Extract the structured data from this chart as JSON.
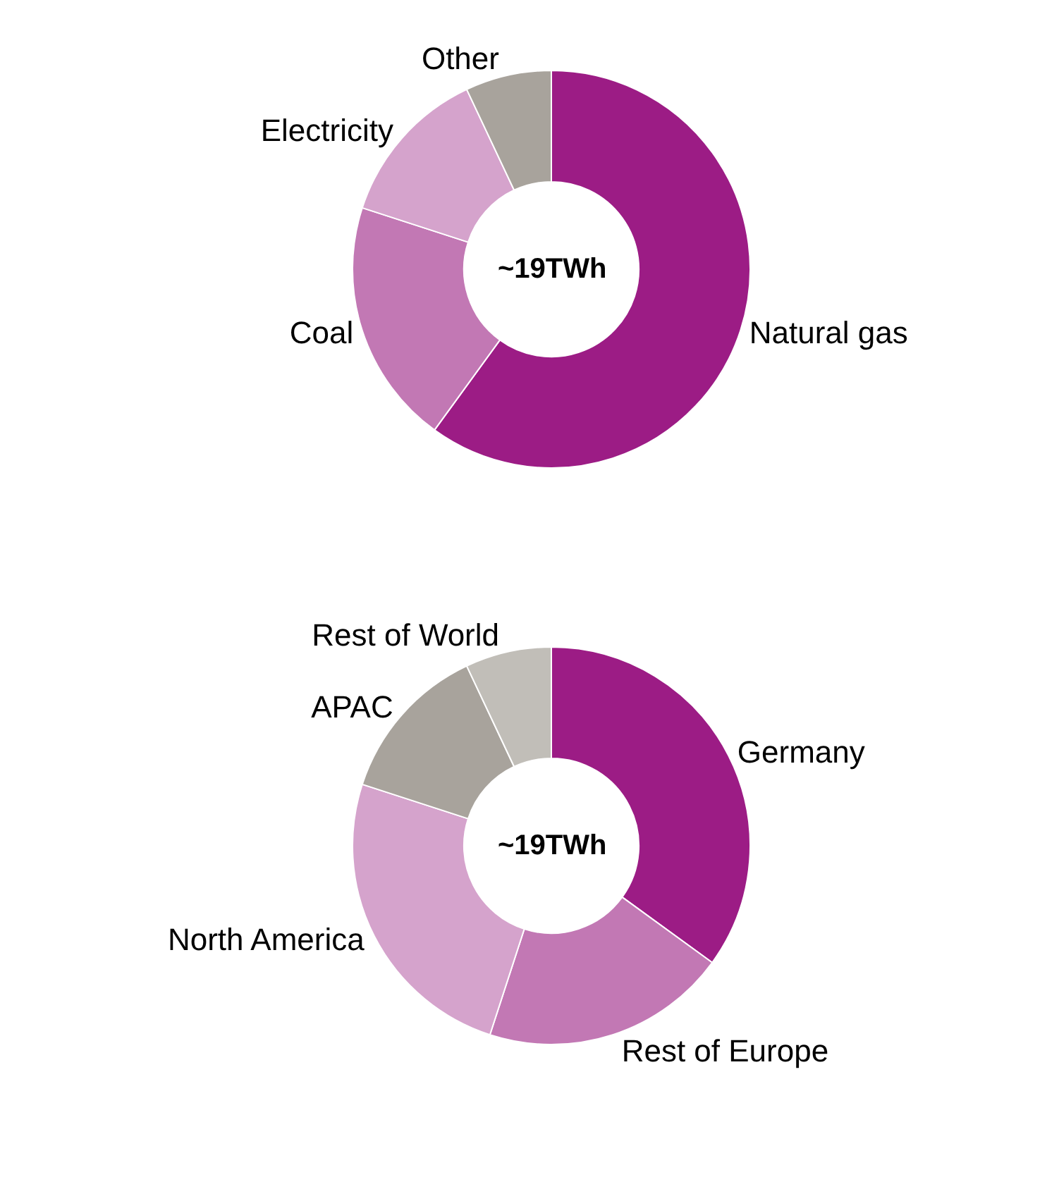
{
  "chart_data": [
    {
      "type": "donut",
      "categories": [
        "Natural gas",
        "Coal",
        "Electricity",
        "Other"
      ],
      "values": [
        60,
        20,
        13,
        7
      ],
      "colors": [
        "#9c1c85",
        "#c278b4",
        "#d5a3cc",
        "#a8a39c"
      ],
      "annotations": [
        "~19TWh"
      ]
    },
    {
      "type": "donut",
      "categories": [
        "Germany",
        "Rest of Europe",
        "North America",
        "APAC",
        "Rest of World"
      ],
      "values": [
        35,
        20,
        25,
        13,
        7
      ],
      "colors": [
        "#9c1c85",
        "#c278b4",
        "#d5a3cc",
        "#a8a39c",
        "#c1beb8"
      ],
      "annotations": [
        "~19TWh"
      ]
    }
  ]
}
